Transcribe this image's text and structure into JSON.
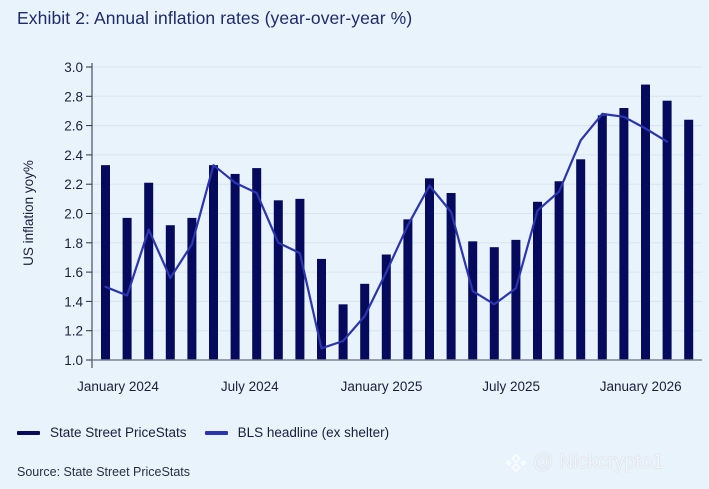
{
  "title": "Exhibit 2: Annual inflation rates (year-over-year %)",
  "colors": {
    "background": "#e8f3fc",
    "bars": "#050a5c",
    "line": "#2b35b0",
    "grid": "#d7e4f0",
    "axis": "#7b8190"
  },
  "legend": [
    {
      "label": "State Street PriceStats",
      "color": "#050a5c"
    },
    {
      "label": "BLS headline (ex shelter)",
      "color": "#2b35b0"
    }
  ],
  "source": "Source: State Street PriceStats",
  "watermark": {
    "icon": "binance-logo-icon",
    "text": "@ Nickcrypto1"
  },
  "chart_data": {
    "type": "bar",
    "title": "Exhibit 2: Annual inflation rates (year-over-year %)",
    "xlabel": "",
    "ylabel": "US inflation yoy%",
    "ylim": [
      1.0,
      3.0
    ],
    "yticks": [
      "1.0",
      "1.2",
      "1.4",
      "1.6",
      "1.8",
      "2.0",
      "2.2",
      "2.4",
      "2.6",
      "2.8",
      "3.0"
    ],
    "grid": true,
    "legend_position": "bottom-left",
    "categories": [
      "Jan 2024",
      "Feb 2024",
      "Mar 2024",
      "Apr 2024",
      "May 2024",
      "Jun 2024",
      "Jul 2024",
      "Aug 2024",
      "Sep 2024",
      "Oct 2024",
      "Nov 2024",
      "Dec 2024",
      "Jan 2025",
      "Feb 2025",
      "Mar 2025",
      "Apr 2025",
      "May 2025",
      "Jun 2025",
      "Jul 2025",
      "Aug 2025",
      "Sep 2025",
      "Oct 2025",
      "Nov 2025",
      "Dec 2025",
      "Jan 2026",
      "Feb 2026",
      "Mar 2026",
      "Apr 2026"
    ],
    "xtick_labels": [
      {
        "label": "January 2024",
        "index": 1.3
      },
      {
        "label": "July 2024",
        "index": 7.4
      },
      {
        "label": "January 2025",
        "index": 13.5
      },
      {
        "label": "July 2025",
        "index": 19.5
      },
      {
        "label": "January 2026",
        "index": 25.5
      }
    ],
    "series": [
      {
        "name": "State Street PriceStats",
        "type": "bar",
        "values": [
          2.33,
          1.97,
          2.21,
          1.92,
          1.97,
          2.33,
          2.27,
          2.31,
          2.09,
          2.1,
          1.69,
          1.38,
          1.52,
          1.72,
          1.96,
          2.24,
          2.14,
          1.81,
          1.77,
          1.82,
          2.08,
          2.22,
          2.37,
          2.67,
          2.72,
          2.88,
          2.77,
          2.64
        ]
      },
      {
        "name": "BLS headline (ex shelter)",
        "type": "line",
        "values": [
          1.5,
          1.44,
          1.89,
          1.56,
          1.79,
          2.33,
          2.21,
          2.14,
          1.8,
          1.73,
          1.08,
          1.13,
          1.3,
          1.6,
          1.92,
          2.19,
          2.01,
          1.47,
          1.38,
          1.49,
          2.02,
          2.15,
          2.5,
          2.68,
          2.66,
          2.58,
          2.49,
          null
        ]
      }
    ]
  }
}
